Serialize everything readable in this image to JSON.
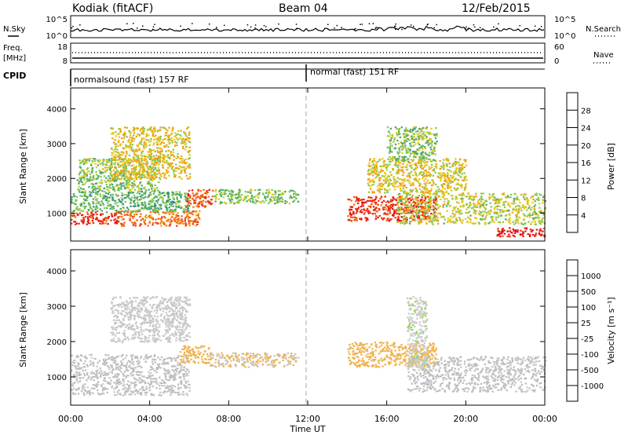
{
  "header": {
    "station": "Kodiak (fitACF)",
    "beam": "Beam 04",
    "date": "12/Feb/2015"
  },
  "params": {
    "nsky_label": "N.Sky",
    "nsearch_label": "N.Search",
    "nsky_ticks": [
      "10^5",
      "10^0"
    ],
    "nsearch_ticks": [
      "10^5",
      "10^0"
    ],
    "freq_label": "Freq.",
    "freq_unit": "[MHz]",
    "freq_ticks": [
      "18",
      "8"
    ],
    "nave_label": "Nave",
    "nave_ticks": [
      "60",
      "0"
    ],
    "cpid_label": "CPID",
    "cpid_segments": [
      "normalsound (fast) 157 RF",
      "normal (fast) 151 RF"
    ]
  },
  "x_axis": {
    "label": "Time UT",
    "ticks": [
      "00:00",
      "04:00",
      "08:00",
      "12:00",
      "16:00",
      "20:00",
      "00:00"
    ]
  },
  "colors": {
    "power": [
      "#1414e6",
      "#2868b4",
      "#2e8c78",
      "#4aa86e",
      "#8cc84e",
      "#e6c81e",
      "#f0a018",
      "#f06e14",
      "#f03c14",
      "#e61414"
    ],
    "velocity": [
      "#e61414",
      "#f05a14",
      "#f08c14",
      "#f0b450",
      "#c8c8c8",
      "#cccccc",
      "#8cdc46",
      "#3cb43c",
      "#2878a0",
      "#1e50b4"
    ],
    "ground_scatter": "#bebebe"
  },
  "chart_data": [
    {
      "type": "heatmap",
      "title": "Power",
      "ylabel": "Slant Range [km]",
      "xlabel": "Time UT",
      "xlim": [
        0,
        24
      ],
      "ylim": [
        200,
        4600
      ],
      "yticks": [
        "1000",
        "2000",
        "3000",
        "4000"
      ],
      "colorbar": {
        "label": "Power [dB]",
        "ticks": [
          "4",
          "8",
          "12",
          "16",
          "20",
          "24",
          "28"
        ],
        "range": [
          0,
          32
        ]
      },
      "regions": [
        {
          "t": [
            0.0,
            2.5
          ],
          "r": [
            700,
            1050
          ],
          "value": 28
        },
        {
          "t": [
            2.5,
            6.5
          ],
          "r": [
            650,
            1100
          ],
          "value": 24
        },
        {
          "t": [
            0.0,
            6.0
          ],
          "r": [
            1050,
            1650
          ],
          "value": 12
        },
        {
          "t": [
            0.3,
            4.5
          ],
          "r": [
            1650,
            2600
          ],
          "value": 14
        },
        {
          "t": [
            2.0,
            6.0
          ],
          "r": [
            2000,
            3500
          ],
          "value": 18
        },
        {
          "t": [
            5.8,
            7.2
          ],
          "r": [
            1200,
            1700
          ],
          "value": 26
        },
        {
          "t": [
            7.2,
            11.5
          ],
          "r": [
            1300,
            1700
          ],
          "value": 14
        },
        {
          "t": [
            14.0,
            18.5
          ],
          "r": [
            800,
            1500
          ],
          "value": 28
        },
        {
          "t": [
            16.5,
            24.0
          ],
          "r": [
            700,
            1600
          ],
          "value": 16
        },
        {
          "t": [
            15.0,
            20.0
          ],
          "r": [
            1600,
            2600
          ],
          "value": 18
        },
        {
          "t": [
            16.0,
            18.5
          ],
          "r": [
            2500,
            3500
          ],
          "value": 14
        },
        {
          "t": [
            21.5,
            24.0
          ],
          "r": [
            350,
            600
          ],
          "value": 30
        }
      ]
    },
    {
      "type": "heatmap",
      "title": "Velocity",
      "ylabel": "Slant Range [km]",
      "xlabel": "Time UT",
      "xlim": [
        0,
        24
      ],
      "ylim": [
        200,
        4600
      ],
      "yticks": [
        "1000",
        "2000",
        "3000",
        "4000"
      ],
      "colorbar": {
        "label": "Velocity [m s⁻¹]",
        "ticks": [
          "1000",
          "500",
          "100",
          "25",
          "-25",
          "-100",
          "-500",
          "-1000"
        ],
        "range": [
          -1000,
          1000
        ]
      },
      "regions": [
        {
          "t": [
            0.0,
            6.0
          ],
          "r": [
            500,
            1650
          ],
          "value": 0
        },
        {
          "t": [
            5.5,
            7.0
          ],
          "r": [
            1400,
            1900
          ],
          "value": -300
        },
        {
          "t": [
            7.0,
            11.5
          ],
          "r": [
            1300,
            1700
          ],
          "value": -200
        },
        {
          "t": [
            2.0,
            6.0
          ],
          "r": [
            2000,
            3300
          ],
          "value": -100
        },
        {
          "t": [
            14.0,
            18.5
          ],
          "r": [
            1300,
            2000
          ],
          "value": -300
        },
        {
          "t": [
            17.0,
            24.0
          ],
          "r": [
            600,
            1600
          ],
          "value": 0
        },
        {
          "t": [
            17.0,
            18.0
          ],
          "r": [
            1200,
            3300
          ],
          "value": 150
        }
      ]
    }
  ]
}
